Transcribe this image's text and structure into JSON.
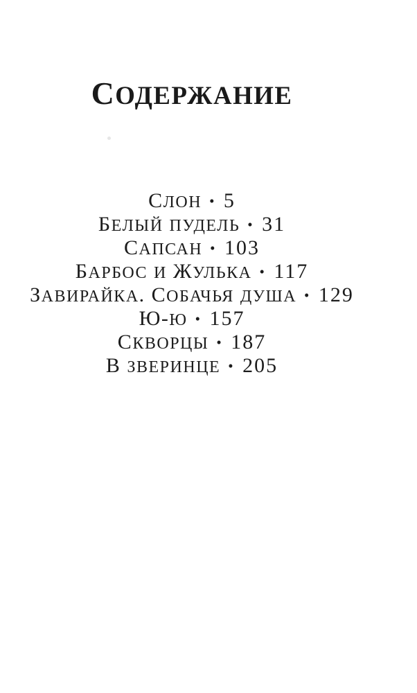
{
  "page": {
    "title": "Содержание",
    "separator": "•",
    "entries": [
      {
        "title": "Слон",
        "page": "5"
      },
      {
        "title": "Белый пудель",
        "page": "31"
      },
      {
        "title": "Сапсан",
        "page": "103"
      },
      {
        "title": "Барбос и Жулька",
        "page": "117"
      },
      {
        "title": "Завирайка. Собачья душа",
        "page": "129"
      },
      {
        "title": "Ю-ю",
        "page": "157"
      },
      {
        "title": "Скворцы",
        "page": "187"
      },
      {
        "title": "В зверинце",
        "page": "205"
      }
    ],
    "colors": {
      "paper": "#ffffff",
      "ink": "#1a1a1a"
    }
  }
}
